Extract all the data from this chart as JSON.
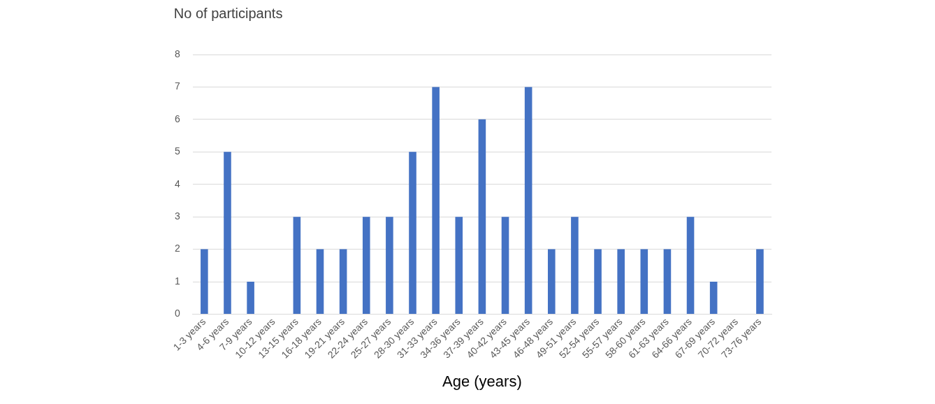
{
  "chart_data": {
    "type": "bar",
    "ylabel": "No of participants",
    "xlabel": "Age (years)",
    "categories": [
      "1-3 years",
      "4-6 years",
      "7-9 years",
      "10-12 years",
      "13-15 years",
      "16-18 years",
      "19-21 years",
      "22-24 years",
      "25-27 years",
      "28-30 years",
      "31-33 years",
      "34-36 years",
      "37-39 years",
      "40-42 years",
      "43-45 years",
      "46-48 years",
      "49-51 years",
      "52-54 years",
      "55-57 years",
      "58-60 years",
      "61-63 years",
      "64-66 years",
      "67-69 years",
      "70-72 years",
      "73-76 years"
    ],
    "values": [
      2,
      5,
      1,
      0,
      3,
      2,
      2,
      3,
      3,
      5,
      7,
      3,
      6,
      3,
      7,
      2,
      3,
      2,
      2,
      2,
      2,
      3,
      1,
      0,
      2
    ],
    "color": "#4472c4",
    "ylim": [
      0,
      8
    ],
    "yticks": [
      0,
      1,
      2,
      3,
      4,
      5,
      6,
      7,
      8
    ],
    "grid": "y",
    "legend": false
  }
}
